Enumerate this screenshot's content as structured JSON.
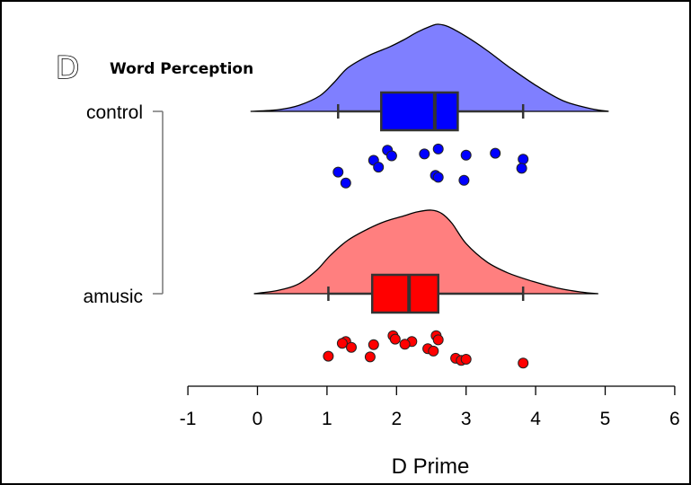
{
  "panel_letter": "D",
  "chart_data": {
    "type": "raincloud",
    "title": "Word Perception",
    "xlabel": "D Prime",
    "ylabel": "",
    "xlim": [
      -1,
      6
    ],
    "xticks": [
      -1,
      0,
      1,
      2,
      3,
      4,
      5,
      6
    ],
    "groups": [
      {
        "name": "control",
        "color": "#7f7fff",
        "box_color": "#0000ff",
        "point_color": "#0000ff",
        "density": {
          "x": [
            -0.1,
            0.3,
            0.6,
            0.9,
            1.1,
            1.3,
            1.6,
            1.9,
            2.1,
            2.3,
            2.5,
            2.6,
            2.75,
            3.0,
            3.3,
            3.6,
            4.0,
            4.4,
            4.8,
            5.05
          ],
          "y": [
            0.0,
            0.02,
            0.07,
            0.18,
            0.33,
            0.5,
            0.64,
            0.74,
            0.82,
            0.91,
            0.98,
            1.0,
            0.97,
            0.86,
            0.7,
            0.52,
            0.3,
            0.12,
            0.03,
            0.0
          ]
        },
        "box": {
          "whisker_low": 1.16,
          "q1": 1.78,
          "median": 2.55,
          "q3": 2.88,
          "whisker_high": 3.82
        },
        "points": [
          {
            "x": 1.87,
            "jitter": 0.1
          },
          {
            "x": 1.93,
            "jitter": 0.25
          },
          {
            "x": 2.6,
            "jitter": 0.07
          },
          {
            "x": 2.4,
            "jitter": 0.2
          },
          {
            "x": 3.0,
            "jitter": 0.23
          },
          {
            "x": 3.42,
            "jitter": 0.18
          },
          {
            "x": 3.82,
            "jitter": 0.34
          },
          {
            "x": 1.67,
            "jitter": 0.37
          },
          {
            "x": 1.74,
            "jitter": 0.55
          },
          {
            "x": 3.8,
            "jitter": 0.58
          },
          {
            "x": 1.16,
            "jitter": 0.68
          },
          {
            "x": 2.56,
            "jitter": 0.77
          },
          {
            "x": 2.6,
            "jitter": 0.82
          },
          {
            "x": 1.27,
            "jitter": 0.97
          },
          {
            "x": 2.97,
            "jitter": 0.9
          }
        ]
      },
      {
        "name": "amusic",
        "color": "#ff7f7f",
        "box_color": "#ff0000",
        "point_color": "#ff0000",
        "density": {
          "x": [
            -0.05,
            0.3,
            0.6,
            0.85,
            1.05,
            1.3,
            1.6,
            1.85,
            2.1,
            2.3,
            2.5,
            2.65,
            2.8,
            3.0,
            3.3,
            3.6,
            3.95,
            4.3,
            4.65,
            4.9
          ],
          "y": [
            0.0,
            0.04,
            0.12,
            0.28,
            0.46,
            0.64,
            0.78,
            0.87,
            0.93,
            0.98,
            1.0,
            0.96,
            0.84,
            0.6,
            0.38,
            0.25,
            0.15,
            0.07,
            0.02,
            0.0
          ]
        },
        "box": {
          "whisker_low": 1.02,
          "q1": 1.65,
          "median": 2.18,
          "q3": 2.6,
          "whisker_high": 3.82
        },
        "points": [
          {
            "x": 1.95,
            "jitter": 0.1
          },
          {
            "x": 2.57,
            "jitter": 0.1
          },
          {
            "x": 1.98,
            "jitter": 0.2
          },
          {
            "x": 2.6,
            "jitter": 0.22
          },
          {
            "x": 1.27,
            "jitter": 0.27
          },
          {
            "x": 2.22,
            "jitter": 0.27
          },
          {
            "x": 1.22,
            "jitter": 0.32
          },
          {
            "x": 2.12,
            "jitter": 0.35
          },
          {
            "x": 1.67,
            "jitter": 0.36
          },
          {
            "x": 1.35,
            "jitter": 0.44
          },
          {
            "x": 2.45,
            "jitter": 0.48
          },
          {
            "x": 2.53,
            "jitter": 0.55
          },
          {
            "x": 1.02,
            "jitter": 0.7
          },
          {
            "x": 1.62,
            "jitter": 0.72
          },
          {
            "x": 2.85,
            "jitter": 0.76
          },
          {
            "x": 2.93,
            "jitter": 0.82
          },
          {
            "x": 3.0,
            "jitter": 0.79
          },
          {
            "x": 3.82,
            "jitter": 0.9
          }
        ]
      }
    ]
  }
}
